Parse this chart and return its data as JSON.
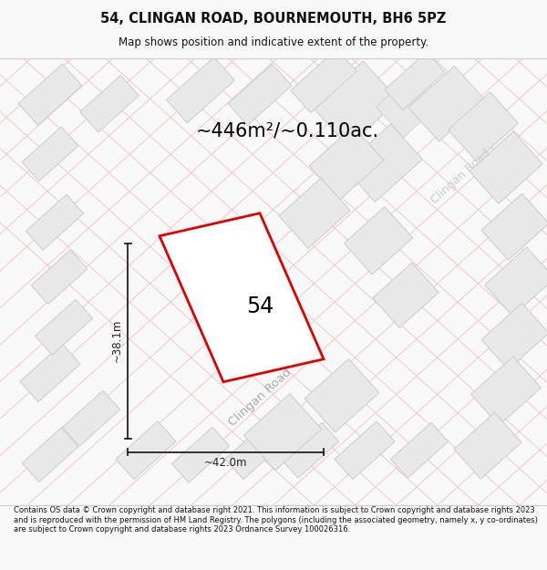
{
  "title": "54, CLINGAN ROAD, BOURNEMOUTH, BH6 5PZ",
  "subtitle": "Map shows position and indicative extent of the property.",
  "area_text": "~446m²/~0.110ac.",
  "property_number": "54",
  "width_label": "~42.0m",
  "height_label": "~38.1m",
  "footer_text": "Contains OS data © Crown copyright and database right 2021. This information is subject to Crown copyright and database rights 2023 and is reproduced with the permission of HM Land Registry. The polygons (including the associated geometry, namely x, y co-ordinates) are subject to Crown copyright and database rights 2023 Ordnance Survey 100026316.",
  "bg_color": "#f8f8f8",
  "map_bg": "#f2f0f0",
  "building_color": "#e8e8e8",
  "building_edge": "#cccccc",
  "road_line_color": "#f0c8c8",
  "road_outline_color": "#d8d8d8",
  "property_color": "#dd0000",
  "dim_line_color": "#222222",
  "title_color": "#111111",
  "footer_color": "#111111",
  "road_label_color": "#aaaaaa"
}
